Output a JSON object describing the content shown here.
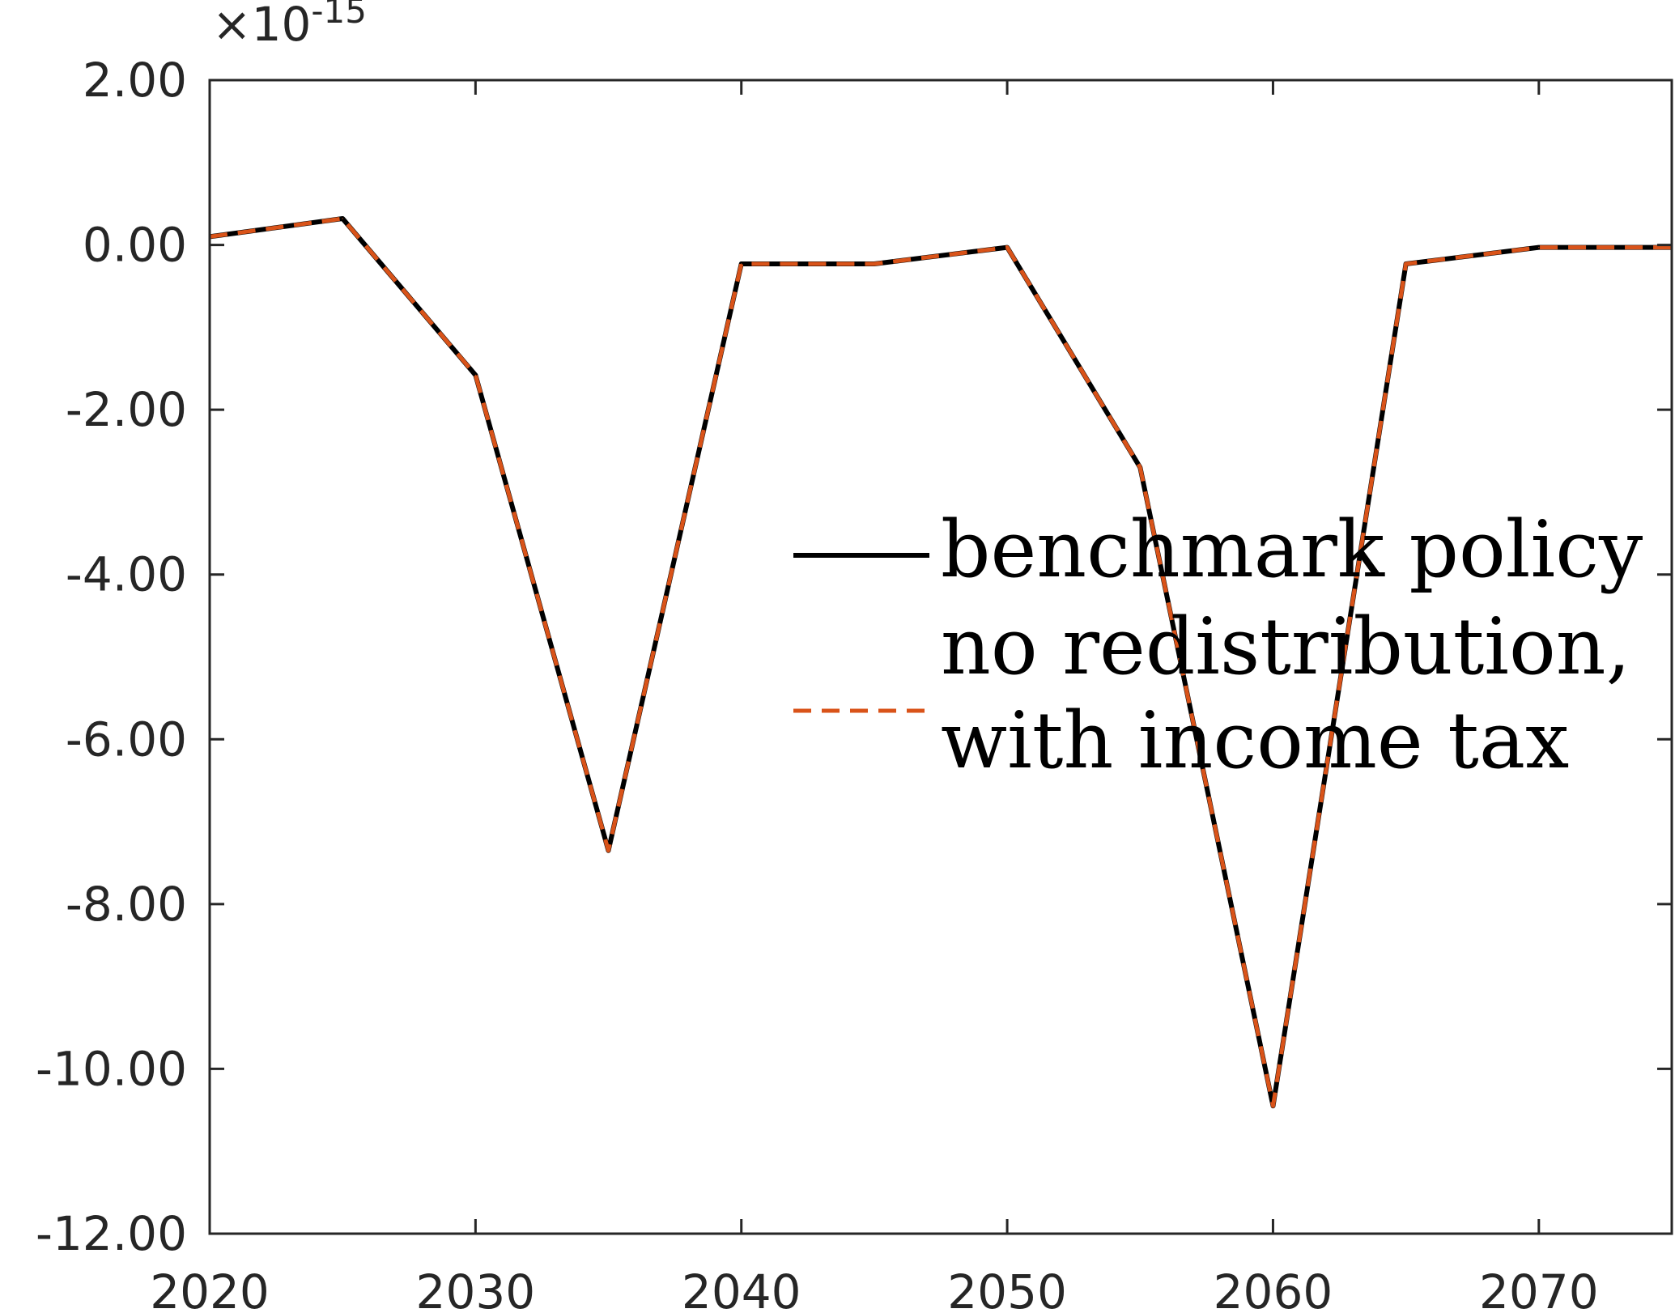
{
  "chart_data": {
    "type": "line",
    "title": "",
    "xlabel": "",
    "ylabel": "",
    "exponent": {
      "base_text": "×10",
      "power_text": "-15"
    },
    "xlim": [
      2020,
      2075
    ],
    "ylim": [
      -12,
      2
    ],
    "xticks": [
      2020,
      2030,
      2040,
      2050,
      2060,
      2070
    ],
    "xtick_labels": [
      "2020",
      "2030",
      "2040",
      "2050",
      "2060",
      "2070"
    ],
    "yticks": [
      2,
      0,
      -2,
      -4,
      -6,
      -8,
      -10,
      -12
    ],
    "ytick_labels": [
      "2.00",
      "0.00",
      "-2.00",
      "-4.00",
      "-6.00",
      "-8.00",
      "-10.00",
      "-12.00"
    ],
    "grid": false,
    "legend": {
      "placement": "center-right",
      "entries": [
        {
          "lines": [
            "benchmark policy"
          ]
        },
        {
          "lines": [
            "no redistribution,",
            "with income tax"
          ]
        }
      ]
    },
    "x": [
      2020,
      2025,
      2030,
      2035,
      2040,
      2045,
      2050,
      2055,
      2060,
      2065,
      2070,
      2075
    ],
    "series": [
      {
        "name": "benchmark policy",
        "style": "solid",
        "color": "#000000",
        "values": [
          0.1,
          0.32,
          -1.58,
          -7.35,
          -0.23,
          -0.23,
          -0.03,
          -2.7,
          -10.45,
          -0.23,
          -0.03,
          -0.03
        ]
      },
      {
        "name": "no redistribution, with income tax",
        "style": "dashed",
        "color": "#D95319",
        "values": [
          0.1,
          0.32,
          -1.58,
          -7.35,
          -0.23,
          -0.23,
          -0.03,
          -2.7,
          -10.45,
          -0.23,
          -0.03,
          -0.03
        ]
      }
    ]
  }
}
